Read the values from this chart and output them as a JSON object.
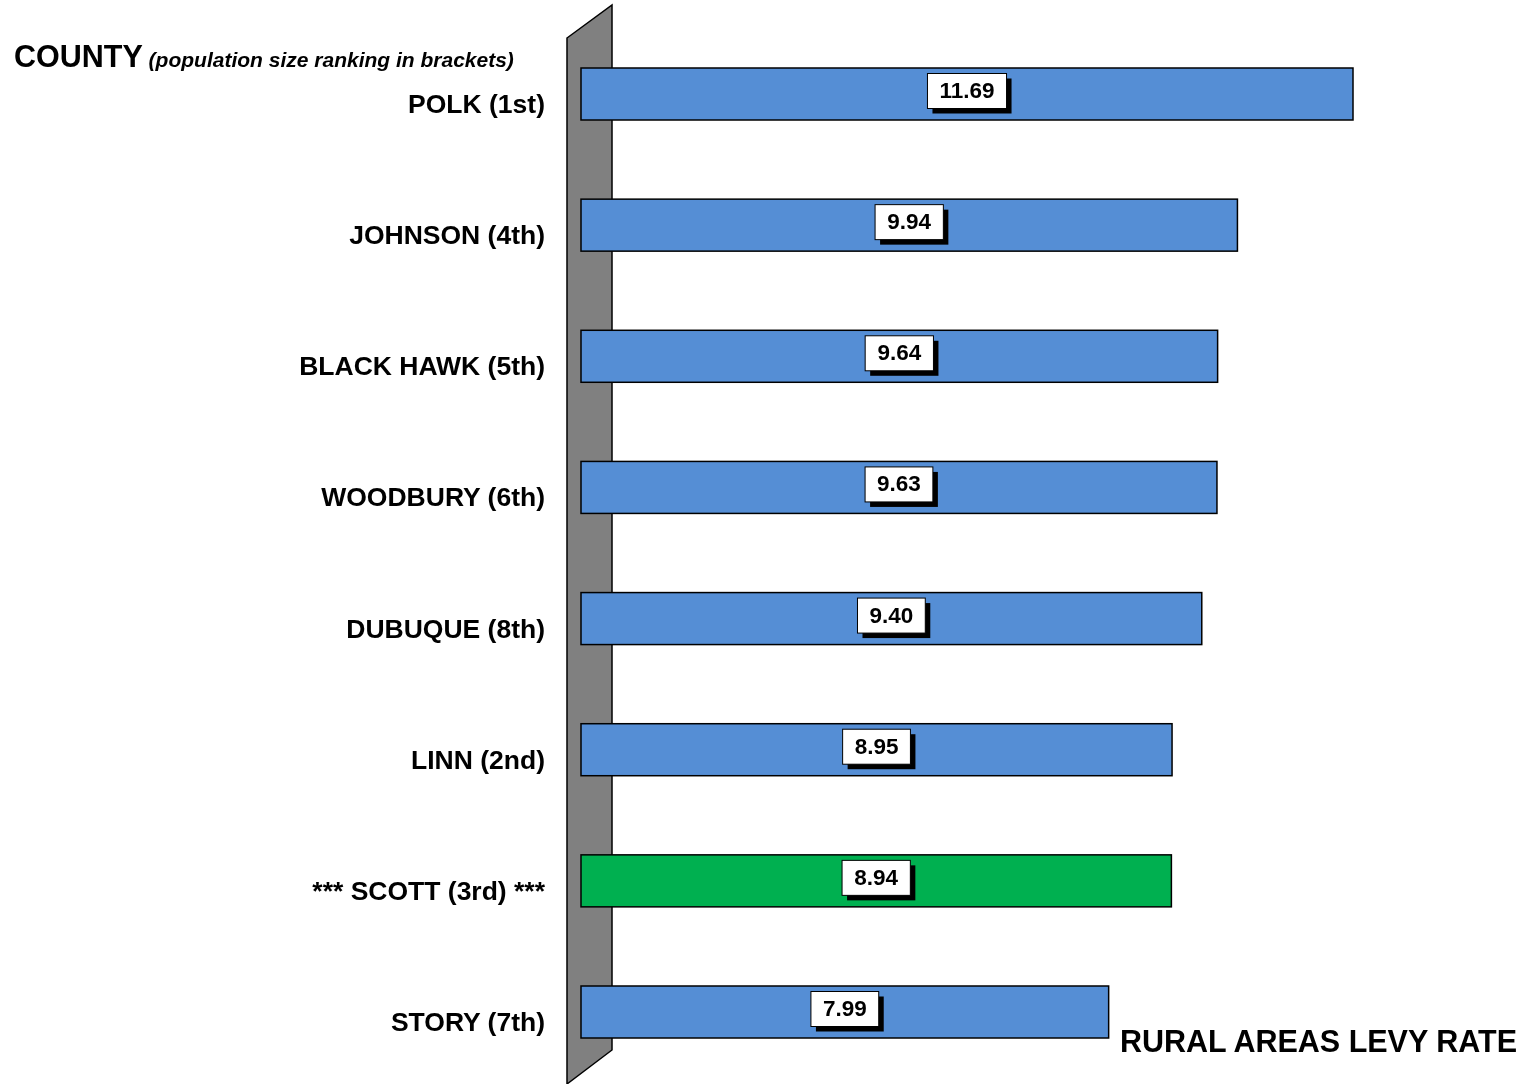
{
  "chart_data": {
    "type": "bar",
    "orientation": "horizontal",
    "ylabel": "COUNTY (population size ranking in brackets)",
    "xlabel": "RURAL AREAS LEVY RATE",
    "categories": [
      "POLK (1st)",
      "JOHNSON (4th)",
      "BLACK HAWK (5th)",
      "WOODBURY (6th)",
      "DUBUQUE (8th)",
      "LINN (2nd)",
      "*** SCOTT (3rd) ***",
      "STORY (7th)"
    ],
    "values": [
      11.69,
      9.94,
      9.64,
      9.63,
      9.4,
      8.95,
      8.94,
      7.99
    ],
    "value_labels": [
      "11.69",
      "9.94",
      "9.64",
      "9.63",
      "9.40",
      "8.95",
      "8.94",
      "7.99"
    ],
    "colors": [
      "#558ed5",
      "#558ed5",
      "#558ed5",
      "#558ed5",
      "#558ed5",
      "#558ed5",
      "#00b050",
      "#558ed5"
    ]
  }
}
